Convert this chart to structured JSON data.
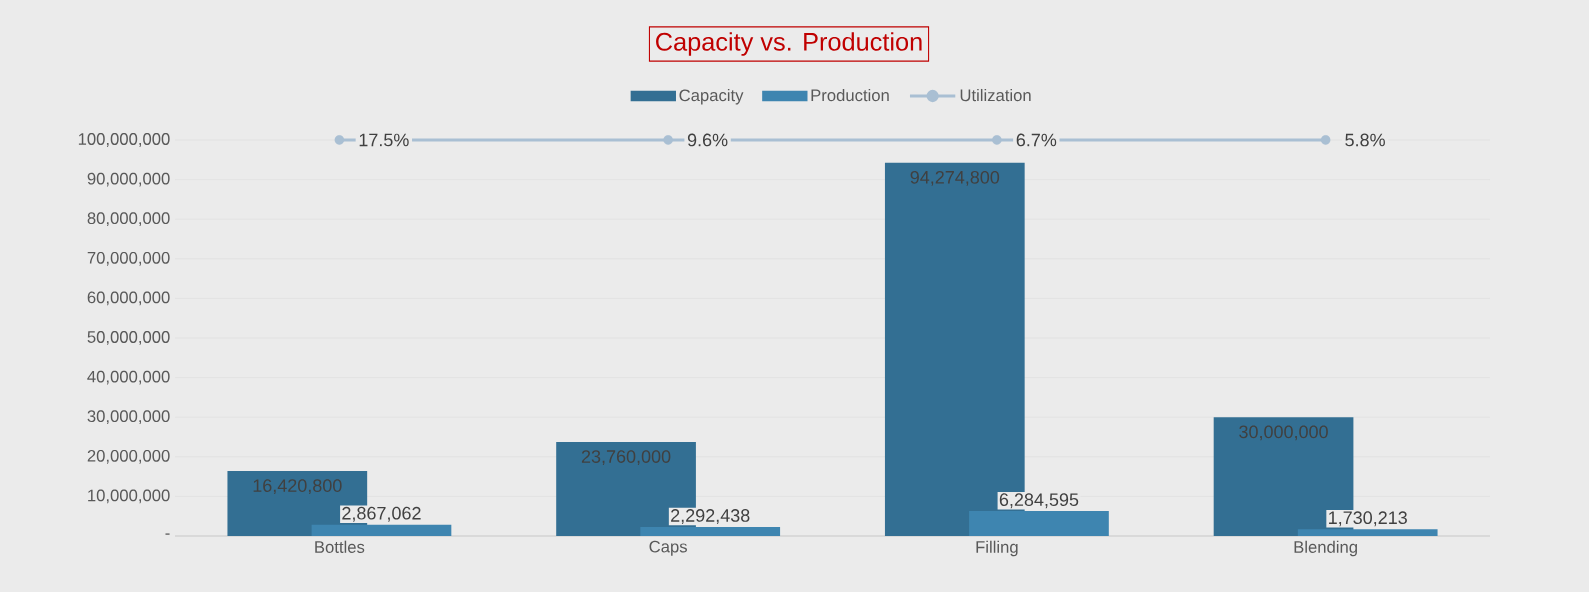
{
  "chart_data": {
    "type": "bar",
    "title": "Capacity vs. Production",
    "categories": [
      "Bottles",
      "Caps",
      "Filling",
      "Blending"
    ],
    "series": [
      {
        "name": "Capacity",
        "color": "#336f93",
        "values": [
          16420800,
          23760000,
          94274800,
          30000000
        ],
        "value_labels": [
          "16,420,800",
          "23,760,000",
          "94,274,800",
          "30,000,000"
        ]
      },
      {
        "name": "Production",
        "color": "#3e85b0",
        "values": [
          2867062,
          2292438,
          6284595,
          1730213
        ],
        "value_labels": [
          "2,867,062",
          "2,292,438",
          "6,284,595",
          "1,730,213"
        ]
      },
      {
        "name": "Utilization",
        "type": "line",
        "color": "#a9bfd3",
        "marker": "circle",
        "values": [
          100000000,
          100000000,
          100000000,
          100000000
        ]
      }
    ],
    "annotations": [
      {
        "text": "17.5%",
        "x": "Bottles",
        "y": 100000000
      },
      {
        "text": "9.6%",
        "x": "Caps",
        "y": 100000000
      },
      {
        "text": "6.7%",
        "x": "Filling",
        "y": 100000000
      },
      {
        "text": "5.8%",
        "x": "Blending",
        "y": 100000000
      }
    ],
    "ylim": [
      0,
      100000000
    ],
    "yticks": [
      {
        "value": 0,
        "label": "-"
      },
      {
        "value": 10000000,
        "label": "10,000,000"
      },
      {
        "value": 20000000,
        "label": "20,000,000"
      },
      {
        "value": 30000000,
        "label": "30,000,000"
      },
      {
        "value": 40000000,
        "label": "40,000,000"
      },
      {
        "value": 50000000,
        "label": "50,000,000"
      },
      {
        "value": 60000000,
        "label": "60,000,000"
      },
      {
        "value": 70000000,
        "label": "70,000,000"
      },
      {
        "value": 80000000,
        "label": "80,000,000"
      },
      {
        "value": 90000000,
        "label": "90,000,000"
      },
      {
        "value": 100000000,
        "label": "100,000,000"
      }
    ],
    "grid": "y",
    "legend": "top"
  }
}
